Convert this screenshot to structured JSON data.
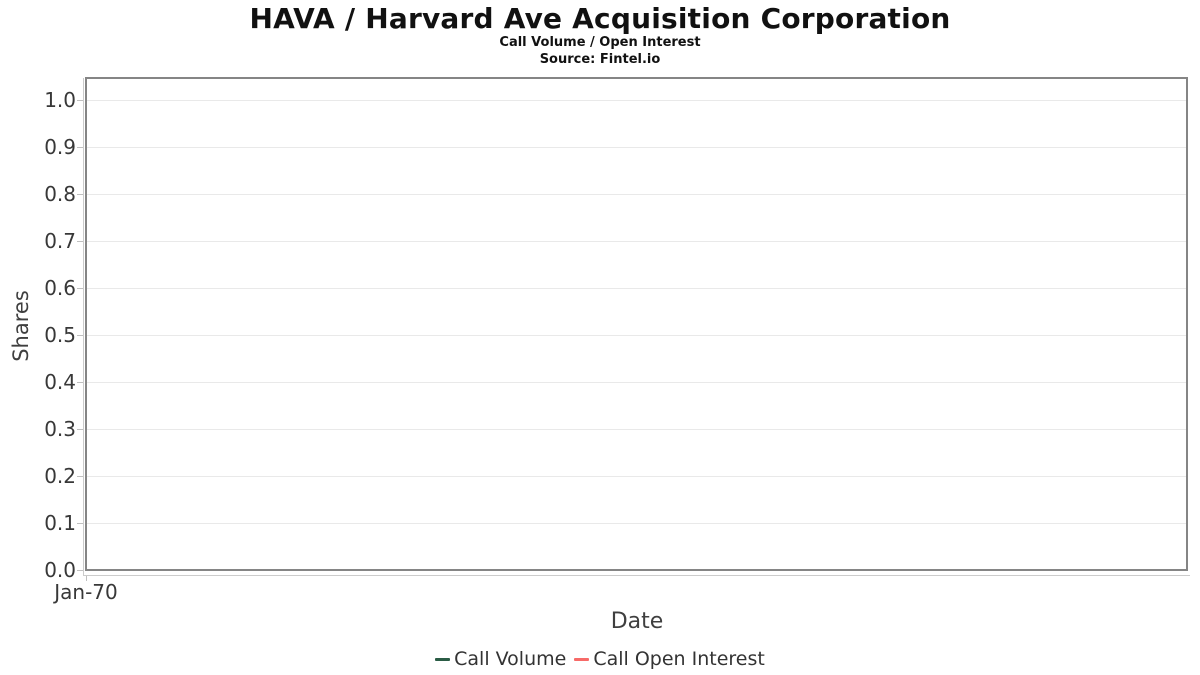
{
  "header": {
    "title": "HAVA / Harvard Ave Acquisition Corporation",
    "subtitle": "Call Volume / Open Interest",
    "source": "Source: Fintel.io"
  },
  "chart_data": {
    "type": "line",
    "title": "HAVA / Harvard Ave Acquisition Corporation",
    "subtitle": "Call Volume / Open Interest",
    "source": "Source: Fintel.io",
    "xlabel": "Date",
    "ylabel": "Shares",
    "xticks": [
      "Jan-70"
    ],
    "yticks": [
      0.0,
      0.1,
      0.2,
      0.3,
      0.4,
      0.5,
      0.6,
      0.7,
      0.8,
      0.9,
      1.0
    ],
    "ylim": [
      0.0,
      1.05
    ],
    "grid": "horizontal-only",
    "legend_position": "bottom-center",
    "series": [
      {
        "name": "Call Volume",
        "color": "#2a5c45",
        "x": [],
        "values": []
      },
      {
        "name": "Call Open Interest",
        "color": "#f76a68",
        "x": [],
        "values": []
      }
    ],
    "note_colors": {
      "plot_border": "#858585",
      "gridline": "#e9e9e9",
      "axis_line": "#cccccc",
      "tick_label": "#383838"
    }
  }
}
